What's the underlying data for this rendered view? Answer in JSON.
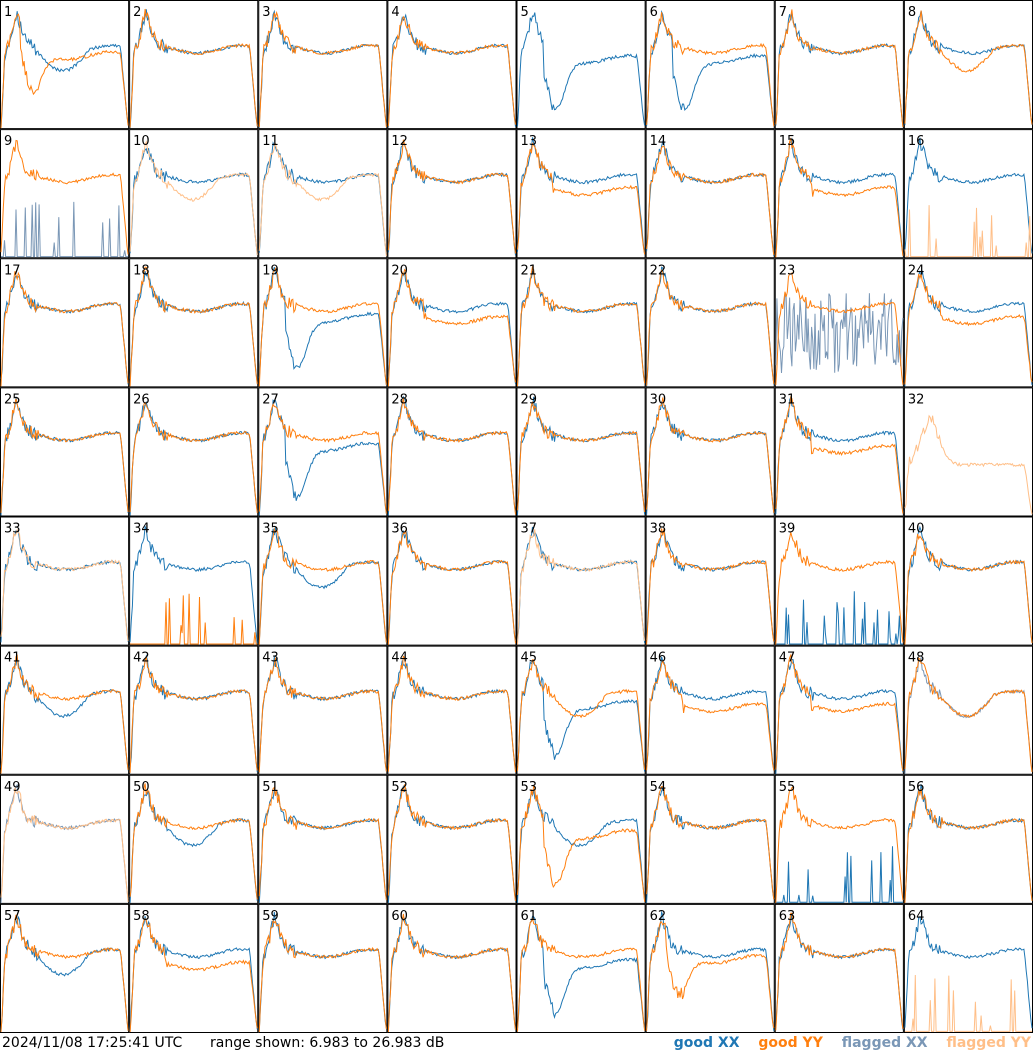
{
  "footer": {
    "timestamp": "2024/11/08 17:25:41 UTC",
    "range_text": "range shown: 6.983 to 26.983 dB"
  },
  "legend": {
    "good_xx": "good XX",
    "good_yy": "good YY",
    "flagged_xx": "flagged XX",
    "flagged_yy": "flagged YY"
  },
  "colors": {
    "good_xx": "#1f77b4",
    "good_yy": "#ff7f0e",
    "flagged_xx": "#7a97b6",
    "flagged_yy": "#ffbf88",
    "panel_border": "#000000"
  },
  "chart_data": {
    "type": "line",
    "layout": "small multiples 8x8",
    "ylim_db": [
      6.983,
      26.983
    ],
    "panels": [
      {
        "id": 1,
        "xx_kind": "dip",
        "yy_kind": "dip_low",
        "xx_flag": false,
        "yy_flag": false
      },
      {
        "id": 2,
        "xx_kind": "normal",
        "yy_kind": "normal",
        "xx_flag": false,
        "yy_flag": false
      },
      {
        "id": 3,
        "xx_kind": "normal",
        "yy_kind": "normal",
        "xx_flag": false,
        "yy_flag": false
      },
      {
        "id": 4,
        "xx_kind": "normal",
        "yy_kind": "normal",
        "xx_flag": false,
        "yy_flag": false
      },
      {
        "id": 5,
        "xx_kind": "dip_deep",
        "yy_kind": "none",
        "xx_flag": false,
        "yy_flag": false
      },
      {
        "id": 6,
        "xx_kind": "dip_deep",
        "yy_kind": "normal",
        "xx_flag": false,
        "yy_flag": false
      },
      {
        "id": 7,
        "xx_kind": "normal",
        "yy_kind": "normal",
        "xx_flag": false,
        "yy_flag": false
      },
      {
        "id": 8,
        "xx_kind": "normal",
        "yy_kind": "dip",
        "xx_flag": false,
        "yy_flag": false
      },
      {
        "id": 9,
        "xx_kind": "spikes",
        "yy_kind": "normal",
        "xx_flag": true,
        "yy_flag": false
      },
      {
        "id": 10,
        "xx_kind": "normal",
        "yy_kind": "dip",
        "xx_flag": false,
        "yy_flag": true
      },
      {
        "id": 11,
        "xx_kind": "normal",
        "yy_kind": "dip",
        "xx_flag": false,
        "yy_flag": true
      },
      {
        "id": 12,
        "xx_kind": "normal",
        "yy_kind": "normal",
        "xx_flag": false,
        "yy_flag": false
      },
      {
        "id": 13,
        "xx_kind": "normal",
        "yy_kind": "low",
        "xx_flag": false,
        "yy_flag": false
      },
      {
        "id": 14,
        "xx_kind": "normal",
        "yy_kind": "normal",
        "xx_flag": false,
        "yy_flag": false
      },
      {
        "id": 15,
        "xx_kind": "normal",
        "yy_kind": "low",
        "xx_flag": false,
        "yy_flag": false
      },
      {
        "id": 16,
        "xx_kind": "normal",
        "yy_kind": "spikes",
        "xx_flag": false,
        "yy_flag": true
      },
      {
        "id": 17,
        "xx_kind": "normal",
        "yy_kind": "normal",
        "xx_flag": false,
        "yy_flag": false
      },
      {
        "id": 18,
        "xx_kind": "normal",
        "yy_kind": "normal",
        "xx_flag": false,
        "yy_flag": false
      },
      {
        "id": 19,
        "xx_kind": "dip_deep",
        "yy_kind": "normal",
        "xx_flag": false,
        "yy_flag": false
      },
      {
        "id": 20,
        "xx_kind": "normal",
        "yy_kind": "low",
        "xx_flag": false,
        "yy_flag": false
      },
      {
        "id": 21,
        "xx_kind": "normal",
        "yy_kind": "normal",
        "xx_flag": false,
        "yy_flag": false
      },
      {
        "id": 22,
        "xx_kind": "normal",
        "yy_kind": "normal",
        "xx_flag": false,
        "yy_flag": false
      },
      {
        "id": 23,
        "xx_kind": "noise",
        "yy_kind": "normal",
        "xx_flag": true,
        "yy_flag": false
      },
      {
        "id": 24,
        "xx_kind": "normal",
        "yy_kind": "low",
        "xx_flag": false,
        "yy_flag": false
      },
      {
        "id": 25,
        "xx_kind": "normal",
        "yy_kind": "normal",
        "xx_flag": false,
        "yy_flag": false
      },
      {
        "id": 26,
        "xx_kind": "normal",
        "yy_kind": "normal",
        "xx_flag": false,
        "yy_flag": false
      },
      {
        "id": 27,
        "xx_kind": "dip_deep",
        "yy_kind": "normal",
        "xx_flag": false,
        "yy_flag": false
      },
      {
        "id": 28,
        "xx_kind": "normal",
        "yy_kind": "normal",
        "xx_flag": false,
        "yy_flag": false
      },
      {
        "id": 29,
        "xx_kind": "normal",
        "yy_kind": "normal",
        "xx_flag": false,
        "yy_flag": false
      },
      {
        "id": 30,
        "xx_kind": "normal",
        "yy_kind": "normal",
        "xx_flag": false,
        "yy_flag": false
      },
      {
        "id": 31,
        "xx_kind": "normal",
        "yy_kind": "low",
        "xx_flag": false,
        "yy_flag": false
      },
      {
        "id": 32,
        "xx_kind": "none",
        "yy_kind": "noisy_high",
        "xx_flag": false,
        "yy_flag": true
      },
      {
        "id": 33,
        "xx_kind": "normal",
        "yy_kind": "normal",
        "xx_flag": false,
        "yy_flag": true
      },
      {
        "id": 34,
        "xx_kind": "normal",
        "yy_kind": "spikes",
        "xx_flag": false,
        "yy_flag": false
      },
      {
        "id": 35,
        "xx_kind": "dip",
        "yy_kind": "normal",
        "xx_flag": false,
        "yy_flag": false
      },
      {
        "id": 36,
        "xx_kind": "normal",
        "yy_kind": "normal",
        "xx_flag": false,
        "yy_flag": false
      },
      {
        "id": 37,
        "xx_kind": "normal",
        "yy_kind": "normal",
        "xx_flag": false,
        "yy_flag": true
      },
      {
        "id": 38,
        "xx_kind": "normal",
        "yy_kind": "normal",
        "xx_flag": false,
        "yy_flag": false
      },
      {
        "id": 39,
        "xx_kind": "spikes",
        "yy_kind": "normal",
        "xx_flag": false,
        "yy_flag": false
      },
      {
        "id": 40,
        "xx_kind": "normal",
        "yy_kind": "normal",
        "xx_flag": false,
        "yy_flag": false
      },
      {
        "id": 41,
        "xx_kind": "dip",
        "yy_kind": "normal",
        "xx_flag": false,
        "yy_flag": false
      },
      {
        "id": 42,
        "xx_kind": "normal",
        "yy_kind": "normal",
        "xx_flag": false,
        "yy_flag": false
      },
      {
        "id": 43,
        "xx_kind": "normal",
        "yy_kind": "normal",
        "xx_flag": false,
        "yy_flag": false
      },
      {
        "id": 44,
        "xx_kind": "normal",
        "yy_kind": "normal",
        "xx_flag": false,
        "yy_flag": false
      },
      {
        "id": 45,
        "xx_kind": "dip_deep",
        "yy_kind": "dip",
        "xx_flag": false,
        "yy_flag": false
      },
      {
        "id": 46,
        "xx_kind": "normal",
        "yy_kind": "low",
        "xx_flag": false,
        "yy_flag": false
      },
      {
        "id": 47,
        "xx_kind": "normal",
        "yy_kind": "low",
        "xx_flag": false,
        "yy_flag": false
      },
      {
        "id": 48,
        "xx_kind": "dip",
        "yy_kind": "dip",
        "xx_flag": true,
        "yy_flag": false
      },
      {
        "id": 49,
        "xx_kind": "normal",
        "yy_kind": "normal",
        "xx_flag": true,
        "yy_flag": true
      },
      {
        "id": 50,
        "xx_kind": "dip",
        "yy_kind": "normal",
        "xx_flag": false,
        "yy_flag": false
      },
      {
        "id": 51,
        "xx_kind": "normal",
        "yy_kind": "normal",
        "xx_flag": false,
        "yy_flag": false
      },
      {
        "id": 52,
        "xx_kind": "normal",
        "yy_kind": "normal",
        "xx_flag": false,
        "yy_flag": false
      },
      {
        "id": 53,
        "xx_kind": "dip",
        "yy_kind": "dip_deep",
        "xx_flag": false,
        "yy_flag": false
      },
      {
        "id": 54,
        "xx_kind": "normal",
        "yy_kind": "normal",
        "xx_flag": false,
        "yy_flag": false
      },
      {
        "id": 55,
        "xx_kind": "spikes",
        "yy_kind": "normal",
        "xx_flag": false,
        "yy_flag": false
      },
      {
        "id": 56,
        "xx_kind": "normal",
        "yy_kind": "normal",
        "xx_flag": false,
        "yy_flag": false
      },
      {
        "id": 57,
        "xx_kind": "dip",
        "yy_kind": "normal",
        "xx_flag": false,
        "yy_flag": false
      },
      {
        "id": 58,
        "xx_kind": "normal",
        "yy_kind": "low",
        "xx_flag": false,
        "yy_flag": false
      },
      {
        "id": 59,
        "xx_kind": "normal",
        "yy_kind": "normal",
        "xx_flag": false,
        "yy_flag": false
      },
      {
        "id": 60,
        "xx_kind": "normal",
        "yy_kind": "normal",
        "xx_flag": false,
        "yy_flag": false
      },
      {
        "id": 61,
        "xx_kind": "dip_deep",
        "yy_kind": "normal",
        "xx_flag": false,
        "yy_flag": false
      },
      {
        "id": 62,
        "xx_kind": "normal",
        "yy_kind": "dip_low",
        "xx_flag": false,
        "yy_flag": false
      },
      {
        "id": 63,
        "xx_kind": "normal",
        "yy_kind": "normal",
        "xx_flag": false,
        "yy_flag": false
      },
      {
        "id": 64,
        "xx_kind": "normal",
        "yy_kind": "spikes",
        "xx_flag": false,
        "yy_flag": true
      }
    ]
  }
}
